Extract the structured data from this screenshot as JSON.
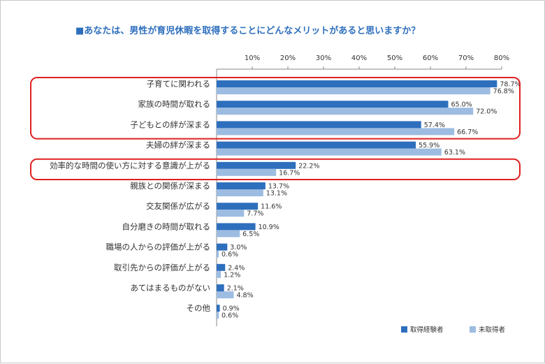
{
  "chart_data": {
    "type": "bar",
    "orientation": "horizontal",
    "title": "■あなたは、男性が育児休暇を取得することにどんなメリットがあると思いますか？",
    "xlim": [
      0,
      80
    ],
    "ticks": [
      10,
      20,
      30,
      40,
      50,
      60,
      70,
      80
    ],
    "tick_labels": [
      "10%",
      "20%",
      "30%",
      "40%",
      "50%",
      "60%",
      "70%",
      "80%"
    ],
    "legend_position": "bottom-right",
    "categories": [
      "子育てに関われる",
      "家族の時間が取れる",
      "子どもとの絆が深まる",
      "夫婦の絆が深まる",
      "効率的な時間の使い方に対する意識が上がる",
      "親族との関係が深まる",
      "交友関係が広がる",
      "自分磨きの時間が取れる",
      "職場の人からの評価が上がる",
      "取引先からの評価が上がる",
      "あてはまるものがない",
      "その他"
    ],
    "series": [
      {
        "name": "取得経験者",
        "color": "#2e6fbd",
        "values": [
          78.7,
          65.0,
          57.4,
          55.9,
          22.2,
          13.7,
          11.6,
          10.9,
          3.0,
          2.4,
          2.1,
          0.9
        ],
        "labels": [
          "78.7%",
          "65.0%",
          "57.4%",
          "55.9%",
          "22.2%",
          "13.7%",
          "11.6%",
          "10.9%",
          "3.0%",
          "2.4%",
          "2.1%",
          "0.9%"
        ]
      },
      {
        "name": "未取得者",
        "color": "#9dbce1",
        "values": [
          76.8,
          72.0,
          66.7,
          63.1,
          16.7,
          13.1,
          7.7,
          6.5,
          0.6,
          1.2,
          4.8,
          0.6
        ],
        "labels": [
          "76.8%",
          "72.0%",
          "66.7%",
          "63.1%",
          "16.7%",
          "13.1%",
          "7.7%",
          "6.5%",
          "0.6%",
          "1.2%",
          "4.8%",
          "0.6%"
        ]
      }
    ],
    "highlight_groups": [
      {
        "from": 0,
        "to": 2,
        "color": "#e02020"
      },
      {
        "from": 4,
        "to": 4,
        "color": "#e02020"
      }
    ]
  }
}
